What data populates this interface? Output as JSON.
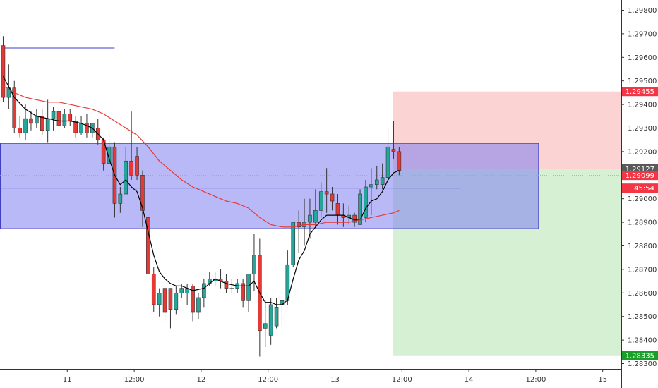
{
  "chart_data": {
    "type": "candlestick",
    "title": "",
    "xlabel": "",
    "ylabel": "",
    "ylim": [
      1.2826,
      1.2985
    ],
    "grid": false,
    "x_ticks": [
      {
        "label": "11",
        "t": 12
      },
      {
        "label": "12:00",
        "t": 24
      },
      {
        "label": "12",
        "t": 36
      },
      {
        "label": "12:00",
        "t": 48
      },
      {
        "label": "13",
        "t": 60
      },
      {
        "label": "12:00",
        "t": 72
      },
      {
        "label": "14",
        "t": 84
      },
      {
        "label": "12:00",
        "t": 96
      },
      {
        "label": "15",
        "t": 108
      }
    ],
    "y_ticks": [
      "1.29800",
      "1.29700",
      "1.29600",
      "1.29500",
      "1.29400",
      "1.29300",
      "1.29200",
      "1.29000",
      "1.28900",
      "1.28800",
      "1.28700",
      "1.28600",
      "1.28500",
      "1.28400",
      "1.28300"
    ],
    "candles": [
      [
        0.5,
        1.2965,
        1.2969,
        1.2941,
        1.2943
      ],
      [
        1.5,
        1.2943,
        1.2957,
        1.2938,
        1.2947
      ],
      [
        2.5,
        1.2947,
        1.295,
        1.2928,
        1.293
      ],
      [
        3.5,
        1.293,
        1.2935,
        1.2926,
        1.2928
      ],
      [
        4.5,
        1.2928,
        1.294,
        1.2925,
        1.2934
      ],
      [
        5.5,
        1.2934,
        1.2937,
        1.2929,
        1.2932
      ],
      [
        6.5,
        1.2932,
        1.2938,
        1.293,
        1.2935
      ],
      [
        7.5,
        1.2935,
        1.2938,
        1.2927,
        1.2929
      ],
      [
        8.5,
        1.2929,
        1.2942,
        1.2924,
        1.2934
      ],
      [
        9.5,
        1.2934,
        1.2939,
        1.2929,
        1.2937
      ],
      [
        10.5,
        1.2937,
        1.2938,
        1.2929,
        1.2931
      ],
      [
        11.5,
        1.2931,
        1.2938,
        1.293,
        1.2936
      ],
      [
        12.5,
        1.2936,
        1.2938,
        1.2931,
        1.2933
      ],
      [
        13.5,
        1.2933,
        1.2935,
        1.2926,
        1.2928
      ],
      [
        14.5,
        1.2928,
        1.2935,
        1.2927,
        1.2932
      ],
      [
        15.5,
        1.2932,
        1.2936,
        1.2926,
        1.2928
      ],
      [
        16.5,
        1.2928,
        1.2932,
        1.2926,
        1.2932
      ],
      [
        17.5,
        1.293,
        1.2934,
        1.2923,
        1.2925
      ],
      [
        18.5,
        1.2925,
        1.2926,
        1.2912,
        1.2915
      ],
      [
        19.5,
        1.2915,
        1.2928,
        1.2915,
        1.2922
      ],
      [
        20.5,
        1.2922,
        1.2924,
        1.2892,
        1.2898
      ],
      [
        21.5,
        1.2898,
        1.2905,
        1.2894,
        1.2902
      ],
      [
        22.5,
        1.2902,
        1.2922,
        1.2902,
        1.2916
      ],
      [
        23.5,
        1.2916,
        1.2937,
        1.2908,
        1.291
      ],
      [
        24.5,
        1.2918,
        1.2922,
        1.2908,
        1.291
      ],
      [
        25.5,
        1.291,
        1.2912,
        1.2888,
        1.2895
      ],
      [
        26.5,
        1.2892,
        1.2892,
        1.2868,
        1.2868
      ],
      [
        27.5,
        1.2868,
        1.2871,
        1.2852,
        1.2855
      ],
      [
        28.5,
        1.2855,
        1.2862,
        1.285,
        1.286
      ],
      [
        29.5,
        1.2862,
        1.2863,
        1.2848,
        1.2852
      ],
      [
        30.5,
        1.2862,
        1.2862,
        1.2845,
        1.2853
      ],
      [
        31.5,
        1.2853,
        1.2863,
        1.2851,
        1.286
      ],
      [
        32.5,
        1.286,
        1.2864,
        1.2858,
        1.2862
      ],
      [
        33.5,
        1.286,
        1.2864,
        1.2855,
        1.2862
      ],
      [
        34.5,
        1.2863,
        1.2864,
        1.2848,
        1.2852
      ],
      [
        35.5,
        1.2852,
        1.286,
        1.2849,
        1.2858
      ],
      [
        36.5,
        1.2858,
        1.2866,
        1.2854,
        1.2864
      ],
      [
        37.5,
        1.2864,
        1.2869,
        1.2863,
        1.2866
      ],
      [
        38.5,
        1.2865,
        1.2869,
        1.2863,
        1.2866
      ],
      [
        39.5,
        1.2866,
        1.287,
        1.2862,
        1.2865
      ],
      [
        40.5,
        1.2865,
        1.2868,
        1.286,
        1.2862
      ],
      [
        41.5,
        1.2862,
        1.2866,
        1.286,
        1.2862
      ],
      [
        42.5,
        1.2862,
        1.2866,
        1.286,
        1.2864
      ],
      [
        43.5,
        1.2864,
        1.2866,
        1.2854,
        1.2857
      ],
      [
        44.5,
        1.2857,
        1.2868,
        1.2852,
        1.2868
      ],
      [
        45.5,
        1.2868,
        1.2885,
        1.2861,
        1.2876
      ],
      [
        46.5,
        1.2876,
        1.2883,
        1.2833,
        1.2844
      ],
      [
        47.5,
        1.2845,
        1.2857,
        1.2837,
        1.2847
      ],
      [
        48.5,
        1.2842,
        1.2858,
        1.2838,
        1.2855
      ],
      [
        49.5,
        1.2846,
        1.2858,
        1.2845,
        1.2854
      ],
      [
        50.5,
        1.2855,
        1.2857,
        1.2846,
        1.2857
      ],
      [
        51.5,
        1.2857,
        1.2878,
        1.2855,
        1.2872
      ],
      [
        52.5,
        1.2872,
        1.289,
        1.2871,
        1.289
      ],
      [
        53.5,
        1.289,
        1.2895,
        1.2877,
        1.2888
      ],
      [
        54.5,
        1.2888,
        1.29,
        1.288,
        1.289
      ],
      [
        55.5,
        1.289,
        1.29,
        1.2883,
        1.2893
      ],
      [
        56.5,
        1.289,
        1.2904,
        1.2888,
        1.2895
      ],
      [
        57.5,
        1.2895,
        1.2907,
        1.2892,
        1.2903
      ],
      [
        58.5,
        1.2903,
        1.2913,
        1.2894,
        1.2902
      ],
      [
        59.5,
        1.2902,
        1.2905,
        1.2895,
        1.2899
      ],
      [
        60.5,
        1.2898,
        1.2902,
        1.2889,
        1.2893
      ],
      [
        61.5,
        1.2893,
        1.2898,
        1.2888,
        1.2892
      ],
      [
        62.5,
        1.2892,
        1.2897,
        1.2889,
        1.2893
      ],
      [
        63.5,
        1.2893,
        1.2894,
        1.2888,
        1.289
      ],
      [
        64.5,
        1.2889,
        1.2904,
        1.2889,
        1.2902
      ],
      [
        65.5,
        1.2892,
        1.2908,
        1.289,
        1.2905
      ],
      [
        66.5,
        1.2905,
        1.2913,
        1.2893,
        1.2906
      ],
      [
        67.5,
        1.2906,
        1.2914,
        1.2904,
        1.2908
      ],
      [
        68.5,
        1.2906,
        1.2915,
        1.2904,
        1.2909
      ],
      [
        69.5,
        1.2909,
        1.293,
        1.2908,
        1.2922
      ],
      [
        70.5,
        1.2921,
        1.2933,
        1.2917,
        1.292
      ],
      [
        71.5,
        1.292,
        1.2922,
        1.291,
        1.2912
      ]
    ],
    "series": [
      {
        "color": "#000000",
        "points": [
          [
            0.5,
            1.2952
          ],
          [
            2.5,
            1.2943
          ],
          [
            4.5,
            1.2938
          ],
          [
            6.5,
            1.2935
          ],
          [
            8.5,
            1.2934
          ],
          [
            10.5,
            1.2933
          ],
          [
            12.5,
            1.2933
          ],
          [
            14.5,
            1.2932
          ],
          [
            16.5,
            1.293
          ],
          [
            18.5,
            1.2925
          ],
          [
            19.5,
            1.2917
          ],
          [
            20.5,
            1.291
          ],
          [
            21.5,
            1.2906
          ],
          [
            22.5,
            1.2908
          ],
          [
            23.5,
            1.2905
          ],
          [
            24.5,
            1.2903
          ],
          [
            25.5,
            1.2896
          ],
          [
            26.5,
            1.2886
          ],
          [
            27.5,
            1.2876
          ],
          [
            28.5,
            1.2869
          ],
          [
            29.5,
            1.2866
          ],
          [
            30.5,
            1.2864
          ],
          [
            31.5,
            1.2863
          ],
          [
            32.5,
            1.2863
          ],
          [
            33.5,
            1.2862
          ],
          [
            34.5,
            1.2861
          ],
          [
            36.5,
            1.2862
          ],
          [
            38.5,
            1.2866
          ],
          [
            40.5,
            1.2864
          ],
          [
            42.5,
            1.2863
          ],
          [
            44.5,
            1.2863
          ],
          [
            45.5,
            1.2865
          ],
          [
            46.5,
            1.286
          ],
          [
            47.5,
            1.2856
          ],
          [
            48.5,
            1.2856
          ],
          [
            49.5,
            1.2855
          ],
          [
            50.5,
            1.2855
          ],
          [
            51.5,
            1.2857
          ],
          [
            52.5,
            1.2866
          ],
          [
            53.5,
            1.2874
          ],
          [
            54.5,
            1.2878
          ],
          [
            55.5,
            1.2885
          ],
          [
            56.5,
            1.2888
          ],
          [
            57.5,
            1.2891
          ],
          [
            58.5,
            1.2893
          ],
          [
            59.5,
            1.2893
          ],
          [
            60.5,
            1.2893
          ],
          [
            61.5,
            1.2893
          ],
          [
            62.5,
            1.2892
          ],
          [
            63.5,
            1.2891
          ],
          [
            64.5,
            1.2891
          ],
          [
            65.5,
            1.2896
          ],
          [
            66.5,
            1.2899
          ],
          [
            67.5,
            1.29
          ],
          [
            68.5,
            1.2903
          ],
          [
            69.5,
            1.2908
          ],
          [
            70.5,
            1.2911
          ],
          [
            71.5,
            1.2912
          ]
        ]
      },
      {
        "color": "#e53935",
        "points": [
          [
            0.5,
            1.2948
          ],
          [
            2.5,
            1.2945
          ],
          [
            4.5,
            1.2943
          ],
          [
            6.5,
            1.2942
          ],
          [
            8.5,
            1.2941
          ],
          [
            10.5,
            1.2941
          ],
          [
            12.5,
            1.294
          ],
          [
            14.5,
            1.2939
          ],
          [
            16.5,
            1.2938
          ],
          [
            18.5,
            1.2936
          ],
          [
            20.5,
            1.2933
          ],
          [
            22.5,
            1.293
          ],
          [
            24.5,
            1.2927
          ],
          [
            26.5,
            1.2922
          ],
          [
            28.5,
            1.2916
          ],
          [
            30.5,
            1.2912
          ],
          [
            32.5,
            1.2908
          ],
          [
            34.5,
            1.2905
          ],
          [
            36.5,
            1.2903
          ],
          [
            38.5,
            1.2901
          ],
          [
            40.5,
            1.2899
          ],
          [
            42.5,
            1.2898
          ],
          [
            44.5,
            1.2896
          ],
          [
            46.5,
            1.2892
          ],
          [
            48.5,
            1.2889
          ],
          [
            50.5,
            1.2888
          ],
          [
            52.5,
            1.2888
          ],
          [
            54.5,
            1.2889
          ],
          [
            56.5,
            1.2889
          ],
          [
            58.5,
            1.289
          ],
          [
            60.5,
            1.289
          ],
          [
            62.5,
            1.289
          ],
          [
            64.5,
            1.2891
          ],
          [
            66.5,
            1.2892
          ],
          [
            68.5,
            1.2893
          ],
          [
            70.5,
            1.2894
          ],
          [
            71.5,
            1.2895
          ]
        ]
      }
    ],
    "annotations": {
      "top_line": {
        "price": 1.2964,
        "t0": 0,
        "t1": 20.5,
        "color": "#3f3fd0"
      },
      "zone": {
        "top": 1.29235,
        "bottom": 1.28873,
        "t0": 0,
        "t1": 96.5,
        "color": "#8080f0"
      },
      "mid_line": {
        "price": 1.29045,
        "t0": 0,
        "t1": 82.5,
        "color": "#3f3fd0"
      },
      "last_line": {
        "price": 1.29099,
        "color": "#f08080"
      },
      "long_position": {
        "entry": 1.29127,
        "stop": 1.29455,
        "target": 1.28335,
        "t0": 70.4,
        "t1": 114.5
      }
    },
    "price_labels": [
      {
        "text": "1.29455",
        "price": 1.29455,
        "bg": "#f23645",
        "fg": "#ffffff"
      },
      {
        "text": "1.29127",
        "price": 1.29127,
        "bg": "#5a5a5a",
        "fg": "#ffffff"
      },
      {
        "text": "1.29099",
        "price": 1.29099,
        "bg": "#f23645",
        "fg": "#ffffff"
      },
      {
        "text": "45:54",
        "price": 1.29045,
        "bg": "#f23645",
        "fg": "#ffffff"
      },
      {
        "text": "1.28335",
        "price": 1.28335,
        "bg": "#1a9e2a",
        "fg": "#ffffff"
      }
    ],
    "colors": {
      "up": "#26a69a",
      "down": "#e53935",
      "axis_text": "#333333",
      "axis_line": "#333333"
    }
  }
}
